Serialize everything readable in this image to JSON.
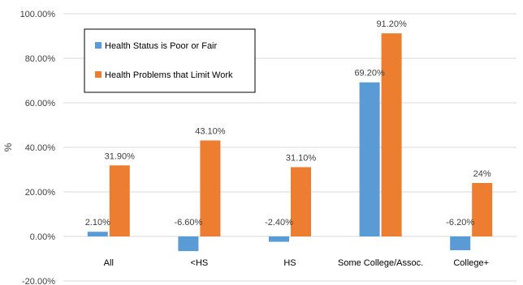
{
  "chart_data": {
    "type": "bar",
    "title": "",
    "xlabel": "",
    "ylabel": "%",
    "ylim": [
      -20,
      100
    ],
    "yticks": [
      -20,
      0,
      20,
      40,
      60,
      80,
      100
    ],
    "ytick_labels": [
      "-20.00%",
      "0.00%",
      "20.00%",
      "40.00%",
      "60.00%",
      "80.00%",
      "100.00%"
    ],
    "grid": true,
    "legend_position": "top-left",
    "categories": [
      "All",
      "<HS",
      "HS",
      "Some College/Assoc.",
      "College+"
    ],
    "series": [
      {
        "name": "Health Status is Poor or Fair",
        "color": "#5b9bd5",
        "values": [
          2.1,
          -6.6,
          -2.4,
          69.2,
          -6.2
        ],
        "labels": [
          "2.10%",
          "-6.60%",
          "-2.40%",
          "69.20%",
          "-6.20%"
        ]
      },
      {
        "name": "Health Problems that Limit Work",
        "color": "#ed7d31",
        "values": [
          31.9,
          43.1,
          31.1,
          91.2,
          24
        ],
        "labels": [
          "31.90%",
          "43.10%",
          "31.10%",
          "91.20%",
          "24%"
        ]
      }
    ]
  }
}
